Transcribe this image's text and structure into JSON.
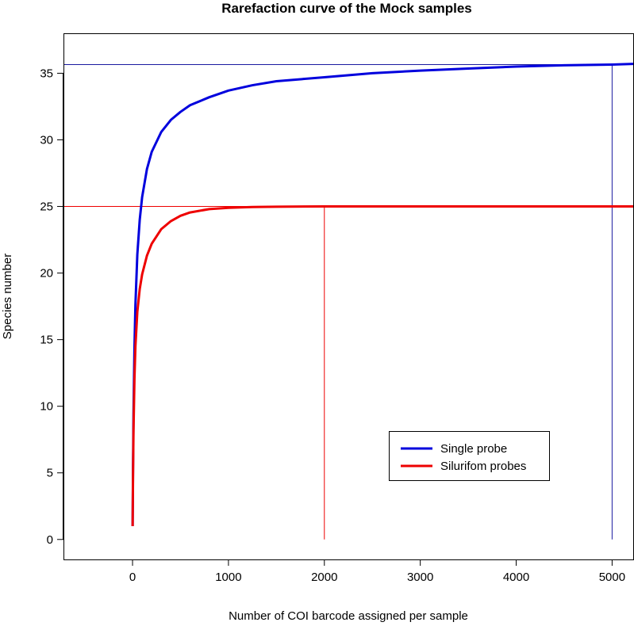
{
  "chart_data": {
    "type": "line",
    "title": "Rarefaction curve of the Mock samples",
    "xlabel": "Number of COI barcode assigned per sample",
    "ylabel": "Species number",
    "xlim": [
      -720,
      5220
    ],
    "ylim": [
      -1.5,
      38
    ],
    "xticks": [
      0,
      1000,
      2000,
      3000,
      4000,
      5000
    ],
    "yticks": [
      0,
      5,
      10,
      15,
      20,
      25,
      30,
      35
    ],
    "grid": false,
    "legend_position": "bottom-right",
    "series": [
      {
        "name": "Single probe",
        "color": "#0000dd",
        "x": [
          1,
          5,
          10,
          20,
          30,
          50,
          75,
          100,
          150,
          200,
          300,
          400,
          500,
          600,
          800,
          1000,
          1250,
          1500,
          2000,
          2500,
          3000,
          3500,
          4000,
          4500,
          5000,
          5220
        ],
        "y": [
          1,
          5.3,
          9.4,
          14.4,
          17.6,
          21.4,
          24.0,
          25.7,
          27.8,
          29.1,
          30.6,
          31.5,
          32.1,
          32.6,
          33.2,
          33.7,
          34.1,
          34.4,
          34.7,
          35.0,
          35.2,
          35.35,
          35.5,
          35.6,
          35.65,
          35.7
        ]
      },
      {
        "name": "Silurifom probes",
        "color": "#ee0000",
        "x": [
          1,
          5,
          10,
          20,
          30,
          50,
          75,
          100,
          150,
          200,
          300,
          400,
          500,
          600,
          800,
          1000,
          1250,
          1500,
          2000,
          2500,
          3000,
          4000,
          5000,
          5220
        ],
        "y": [
          1,
          4.8,
          8.2,
          12.1,
          14.5,
          17.1,
          18.8,
          19.9,
          21.3,
          22.2,
          23.3,
          23.9,
          24.3,
          24.55,
          24.8,
          24.9,
          24.96,
          24.98,
          25.0,
          25.0,
          25.0,
          25.0,
          25.0,
          25.0
        ]
      }
    ],
    "reference_lines": [
      {
        "color": "#1a1aa0",
        "horizontal_y": 35.65,
        "vertical_x": 5000
      },
      {
        "color": "#ee0000",
        "horizontal_y": 25.0,
        "vertical_x": 2000
      }
    ]
  }
}
